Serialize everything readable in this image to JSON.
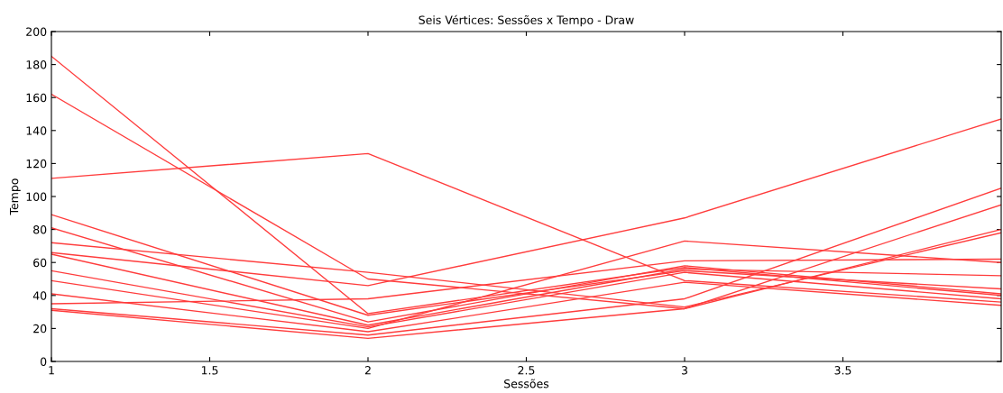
{
  "chart_data": {
    "type": "line",
    "title": "Seis Vértices: Sessões x Tempo - Draw",
    "xlabel": "Sessões",
    "ylabel": "Tempo",
    "x": [
      1,
      2,
      3,
      4
    ],
    "xlim": [
      1,
      4
    ],
    "xticks": [
      1,
      1.5,
      2,
      2.5,
      3,
      3.5
    ],
    "ylim": [
      0,
      200
    ],
    "yticks": [
      0,
      20,
      40,
      60,
      80,
      100,
      120,
      140,
      160,
      180,
      200
    ],
    "grid": false,
    "legend": false,
    "marker": "none",
    "line_style": "solid",
    "series": [
      {
        "color": "#ff3c3c",
        "values": [
          185,
          29,
          57,
          40
        ]
      },
      {
        "color": "#ff3c3c",
        "values": [
          162,
          50,
          32,
          95
        ]
      },
      {
        "color": "#ff3c3c",
        "values": [
          111,
          126,
          49,
          36
        ]
      },
      {
        "color": "#ff3c3c",
        "values": [
          89,
          28,
          55,
          44
        ]
      },
      {
        "color": "#ff3c3c",
        "values": [
          81,
          24,
          58,
          41
        ]
      },
      {
        "color": "#ff3c3c",
        "values": [
          72,
          54,
          33,
          78
        ]
      },
      {
        "color": "#ff3c3c",
        "values": [
          66,
          46,
          87,
          147
        ]
      },
      {
        "color": "#ff3c3c",
        "values": [
          65,
          22,
          56,
          52
        ]
      },
      {
        "color": "#ff3c3c",
        "values": [
          55,
          21,
          54,
          38
        ]
      },
      {
        "color": "#ff3c3c",
        "values": [
          49,
          20,
          73,
          60
        ]
      },
      {
        "color": "#ff3c3c",
        "values": [
          41,
          18,
          48,
          34
        ]
      },
      {
        "color": "#ff3c3c",
        "values": [
          35,
          38,
          61,
          62
        ]
      },
      {
        "color": "#ff3c3c",
        "values": [
          32,
          16,
          38,
          105
        ]
      },
      {
        "color": "#ff3c3c",
        "values": [
          31,
          14,
          32,
          80
        ]
      }
    ]
  }
}
